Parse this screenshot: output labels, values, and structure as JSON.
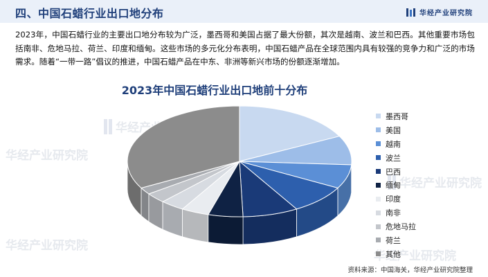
{
  "header": {
    "title": "四、中国石蜡行业出口地分布",
    "brand": "华经产业研究院"
  },
  "intro_text": "2023年，中国石蜡行业的主要出口地分布较为广泛，墨西哥和美国占据了最大份额，其次是越南、波兰和巴西。其他重要市场包括南非、危地马拉、荷兰、印度和缅甸。这些市场的多元化分布表明，中国石蜡产品在全球范围内具有较强的竞争力和广泛的市场需求。随着“一带一路”倡议的推进，中国石蜡产品在中东、非洲等新兴市场的份额逐渐增加。",
  "watermark": "华经产业研究院",
  "source": "资料来源：中国海关，华经产业研究院整理",
  "colors": {
    "header_bg": "#eaf0f9",
    "title": "#1f3f7a"
  },
  "chart_data": {
    "type": "pie",
    "style": "3d",
    "title": "2023年中国石蜡行业出口地前十分布",
    "legend_position": "right",
    "categories": [
      "墨西哥",
      "美国",
      "越南",
      "波兰",
      "巴西",
      "缅甸",
      "印度",
      "南非",
      "危地马拉",
      "荷兰",
      "其他"
    ],
    "values": [
      17.5,
      8.5,
      7.0,
      8.5,
      8.0,
      5.0,
      4.0,
      3.5,
      3.0,
      2.0,
      33.0
    ],
    "colors": [
      "#c8d9f0",
      "#9dbde8",
      "#5b8fd6",
      "#2d5fad",
      "#1a3a78",
      "#0f2244",
      "#e9ecf0",
      "#d7dbe1",
      "#c3c6cb",
      "#a8abb0",
      "#8c8c8c"
    ]
  }
}
